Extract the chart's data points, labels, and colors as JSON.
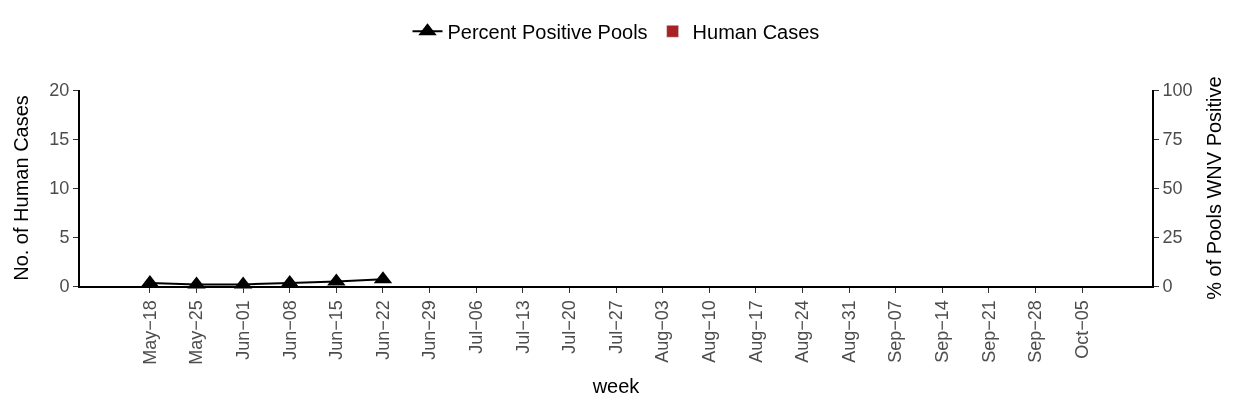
{
  "chart_data": {
    "type": "bar",
    "xlabel": "week",
    "ylabel": "No. of Human Cases",
    "y2label": "% of Pools WNV Positive",
    "categories": [
      "May−18",
      "May−25",
      "Jun−01",
      "Jun−08",
      "Jun−15",
      "Jun−22",
      "Jun−29",
      "Jul−06",
      "Jul−13",
      "Jul−20",
      "Jul−27",
      "Aug−03",
      "Aug−10",
      "Aug−17",
      "Aug−24",
      "Aug−31",
      "Sep−07",
      "Sep−14",
      "Sep−21",
      "Sep−28",
      "Oct−05"
    ],
    "series": [
      {
        "name": "Percent Positive Pools",
        "type": "line",
        "axis": "y2",
        "color": "#000000",
        "marker": "triangle",
        "line_style": "solid",
        "values": [
          1.5,
          0.8,
          0.8,
          1.5,
          2.3,
          3.5,
          null,
          null,
          null,
          null,
          null,
          null,
          null,
          null,
          null,
          null,
          null,
          null,
          null,
          null,
          null
        ]
      },
      {
        "name": "Human Cases",
        "color": "#a82225",
        "values": [
          null,
          null,
          null,
          null,
          null,
          null,
          null,
          null,
          null,
          null,
          null,
          null,
          null,
          null,
          null,
          null,
          null,
          null,
          null,
          null,
          null
        ]
      }
    ],
    "ylim": [
      0,
      20
    ],
    "yticks": [
      0,
      5,
      10,
      15,
      20
    ],
    "y2lim": [
      0,
      100
    ],
    "y2ticks": [
      0,
      25,
      50,
      75,
      100
    ],
    "legend": "top"
  }
}
